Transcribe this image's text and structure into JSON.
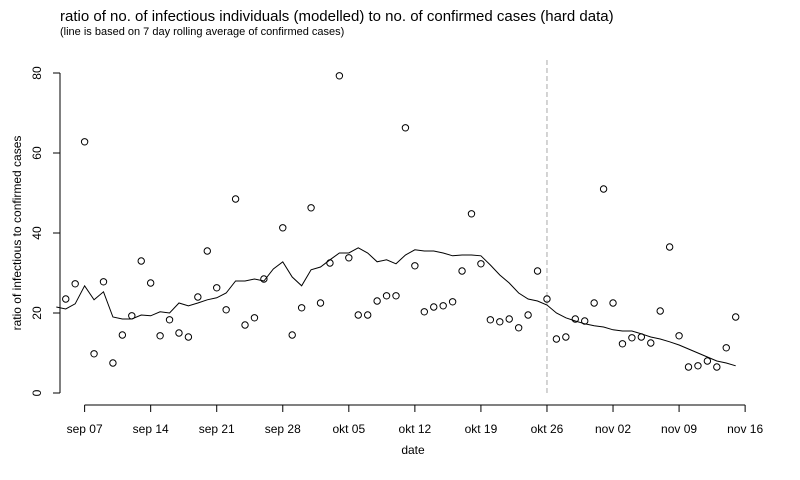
{
  "chart_data": {
    "type": "scatter",
    "title": "ratio of no. of infectious individuals (modelled) to no. of confirmed cases (hard data)",
    "subtitle": "(line is based on 7 day rolling average of confirmed cases)",
    "x_label": "date",
    "y_label": "ratio of infectious to confirmed cases",
    "xlim": [
      "09-01",
      "11-18"
    ],
    "ylim": [
      0,
      80
    ],
    "yticks": [
      0,
      20,
      40,
      60,
      80
    ],
    "xticks": [
      {
        "value": "09-07",
        "label": "sep 07"
      },
      {
        "value": "09-14",
        "label": "sep 14"
      },
      {
        "value": "09-21",
        "label": "sep 21"
      },
      {
        "value": "09-28",
        "label": "sep 28"
      },
      {
        "value": "10-05",
        "label": "okt 05"
      },
      {
        "value": "10-12",
        "label": "okt 12"
      },
      {
        "value": "10-19",
        "label": "okt 19"
      },
      {
        "value": "10-26",
        "label": "okt 26"
      },
      {
        "value": "11-02",
        "label": "nov 02"
      },
      {
        "value": "11-09",
        "label": "nov 09"
      },
      {
        "value": "11-16",
        "label": "nov 16"
      }
    ],
    "vline": "10-26",
    "series": [
      {
        "kind": "points",
        "color": "#000000",
        "x": [
          "09-05",
          "09-06",
          "09-07",
          "09-08",
          "09-09",
          "09-10",
          "09-11",
          "09-12",
          "09-13",
          "09-14",
          "09-15",
          "09-16",
          "09-17",
          "09-18",
          "09-19",
          "09-20",
          "09-21",
          "09-22",
          "09-23",
          "09-24",
          "09-25",
          "09-26",
          "09-27",
          "09-28",
          "09-29",
          "09-30",
          "10-01",
          "10-02",
          "10-03",
          "10-04",
          "10-05",
          "10-06",
          "10-07",
          "10-08",
          "10-09",
          "10-10",
          "10-11",
          "10-12",
          "10-13",
          "10-14",
          "10-15",
          "10-16",
          "10-17",
          "10-18",
          "10-19",
          "10-20",
          "10-21",
          "10-22",
          "10-23",
          "10-24",
          "10-25",
          "10-26",
          "10-27",
          "10-28",
          "10-29",
          "10-30",
          "10-31",
          "11-01",
          "11-02",
          "11-03",
          "11-04",
          "11-05",
          "11-06",
          "11-07",
          "11-08",
          "11-09",
          "11-10",
          "11-11",
          "11-12",
          "11-13",
          "11-14",
          "11-15"
        ],
        "values": [
          23.5,
          27.3,
          62.8,
          9.8,
          27.8,
          7.5,
          14.5,
          19.3,
          33,
          27.5,
          14.3,
          18.3,
          15,
          14,
          24,
          35.5,
          26.3,
          20.8,
          48.5,
          17,
          18.8,
          28.5,
          null,
          41.3,
          14.5,
          21.3,
          46.3,
          22.5,
          32.5,
          79.3,
          33.8,
          19.5,
          19.5,
          23,
          24.3,
          24.3,
          66.3,
          31.8,
          20.3,
          21.5,
          21.8,
          22.8,
          30.5,
          44.8,
          32.3,
          18.3,
          17.8,
          18.5,
          16.3,
          19.5,
          30.5,
          23.5,
          13.5,
          14,
          18.5,
          18,
          22.5,
          51,
          22.5,
          12.3,
          13.8,
          14,
          12.5,
          20.5,
          36.5,
          14.3,
          6.5,
          6.8,
          8,
          6.5,
          11.3,
          19
        ]
      },
      {
        "kind": "line",
        "color": "#000000",
        "x": [
          "09-04",
          "09-05",
          "09-06",
          "09-07",
          "09-08",
          "09-09",
          "09-10",
          "09-11",
          "09-12",
          "09-13",
          "09-14",
          "09-15",
          "09-16",
          "09-17",
          "09-18",
          "09-19",
          "09-20",
          "09-21",
          "09-22",
          "09-23",
          "09-24",
          "09-25",
          "09-26",
          "09-27",
          "09-28",
          "09-29",
          "09-30",
          "10-01",
          "10-02",
          "10-03",
          "10-04",
          "10-05",
          "10-06",
          "10-07",
          "10-08",
          "10-09",
          "10-10",
          "10-11",
          "10-12",
          "10-13",
          "10-14",
          "10-15",
          "10-16",
          "10-17",
          "10-18",
          "10-19",
          "10-20",
          "10-21",
          "10-22",
          "10-23",
          "10-24",
          "10-25",
          "10-26",
          "10-27",
          "10-28",
          "10-29",
          "10-30",
          "10-31",
          "11-01",
          "11-02",
          "11-03",
          "11-04",
          "11-05",
          "11-06",
          "11-07",
          "11-08",
          "11-09",
          "11-10",
          "11-11",
          "11-12",
          "11-13",
          "11-14",
          "11-15"
        ],
        "values": [
          21.5,
          21,
          22.3,
          26.8,
          23.3,
          25.3,
          19,
          18.5,
          18.5,
          19.5,
          19.3,
          20.3,
          20,
          22.5,
          21.8,
          22.5,
          23.3,
          23.8,
          25,
          28,
          28,
          28.5,
          28,
          31,
          32.8,
          29,
          26.8,
          30.8,
          31.5,
          33.3,
          35,
          35,
          36.3,
          35,
          32.8,
          33.3,
          32.3,
          34.5,
          35.8,
          35.5,
          35.5,
          35,
          34.3,
          34.5,
          34.5,
          34.3,
          32,
          29.5,
          27.5,
          25,
          23.5,
          23,
          22,
          20,
          18.8,
          18,
          17.3,
          16.8,
          16.5,
          15.8,
          15.5,
          15.5,
          14.8,
          14,
          13.5,
          12.8,
          12,
          11,
          10,
          9,
          8,
          7.5,
          6.8
        ]
      }
    ]
  }
}
